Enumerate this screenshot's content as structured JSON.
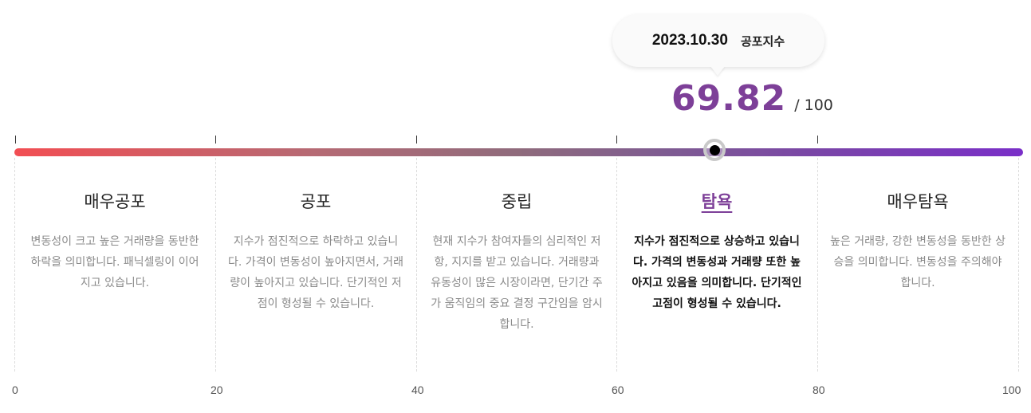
{
  "tooltip": {
    "date": "2023.10.30",
    "label": "공포지수"
  },
  "score": {
    "value": "69.82",
    "max": "/ 100",
    "level": 69.82
  },
  "gauge": {
    "gradient_start": "#f24e53",
    "gradient_end": "#7a2fc8",
    "accent": "#7d3f98"
  },
  "sections": [
    {
      "title": "매우공포",
      "description": "변동성이 크고 높은 거래량을 동반한 하락을 의미합니다. 패닉셀링이 이어지고 있습니다."
    },
    {
      "title": "공포",
      "description": "지수가 점진적으로 하락하고 있습니다. 가격이 변동성이 높아지면서, 거래량이 높아지고 있습니다. 단기적인 저점이 형성될 수 있습니다."
    },
    {
      "title": "중립",
      "description": "현재 지수가 참여자들의 심리적인 저항, 지지를 받고 있습니다. 거래량과 유동성이 많은 시장이라면, 단기간 주가 움직임의 중요 결정 구간임을 암시합니다."
    },
    {
      "title": "탐욕",
      "description": "지수가 점진적으로 상승하고 있습니다. 가격의 변동성과 거래량 또한 높아지고 있음을 의미합니다. 단기적인 고점이 형성될 수 있습니다."
    },
    {
      "title": "매우탐욕",
      "description": "높은 거래량, 강한 변동성을 동반한 상승을 의미합니다. 변동성을 주의해야 합니다."
    }
  ],
  "axis_labels": [
    "0",
    "20",
    "40",
    "60",
    "80",
    "100"
  ]
}
